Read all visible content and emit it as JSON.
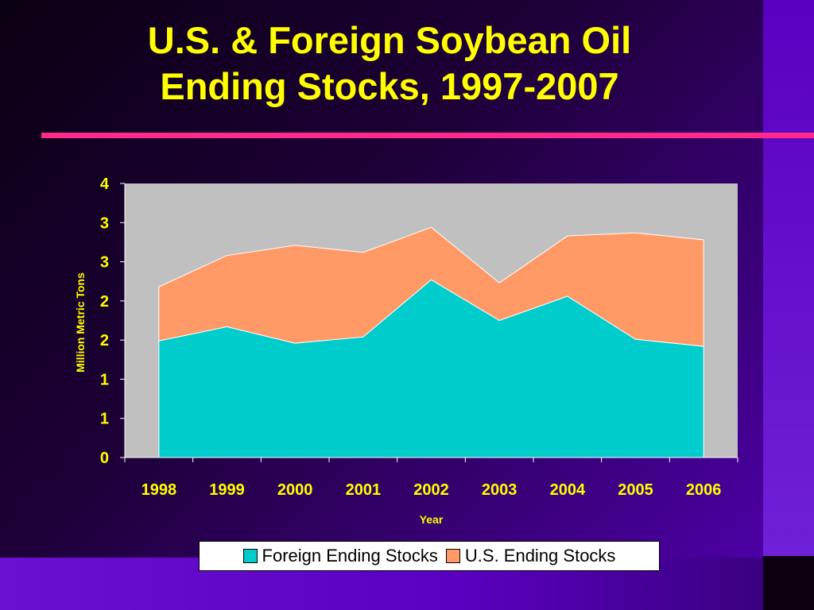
{
  "slide": {
    "title_line1": "U.S. & Foreign Soybean Oil",
    "title_line2": "Ending Stocks, 1997-2007"
  },
  "chart_data": {
    "type": "area",
    "stacked": true,
    "title": "",
    "xlabel": "Year",
    "ylabel": "Million Metric Tons",
    "categories": [
      "1998",
      "1999",
      "2000",
      "2001",
      "2002",
      "2003",
      "2004",
      "2005",
      "2006"
    ],
    "ylim": [
      0,
      3.5
    ],
    "y_tick_values": [
      0,
      0.5,
      1,
      1.5,
      2,
      2.5,
      3,
      3.5
    ],
    "y_tick_labels": [
      "0",
      "1",
      "1",
      "2",
      "2",
      "3",
      "3",
      "4"
    ],
    "series": [
      {
        "name": "Foreign Ending Stocks",
        "color": "#00cccc",
        "values": [
          1.49,
          1.67,
          1.46,
          1.54,
          2.27,
          1.75,
          2.06,
          1.51,
          1.42
        ]
      },
      {
        "name": "U.S. Ending Stocks",
        "color": "#ff9966",
        "values": [
          0.69,
          0.91,
          1.25,
          1.08,
          0.67,
          0.48,
          0.77,
          1.36,
          1.36
        ]
      }
    ],
    "plot_background": "#c0c0c0",
    "label_color": "#ffff00",
    "grid": false,
    "legend_position": "bottom"
  }
}
